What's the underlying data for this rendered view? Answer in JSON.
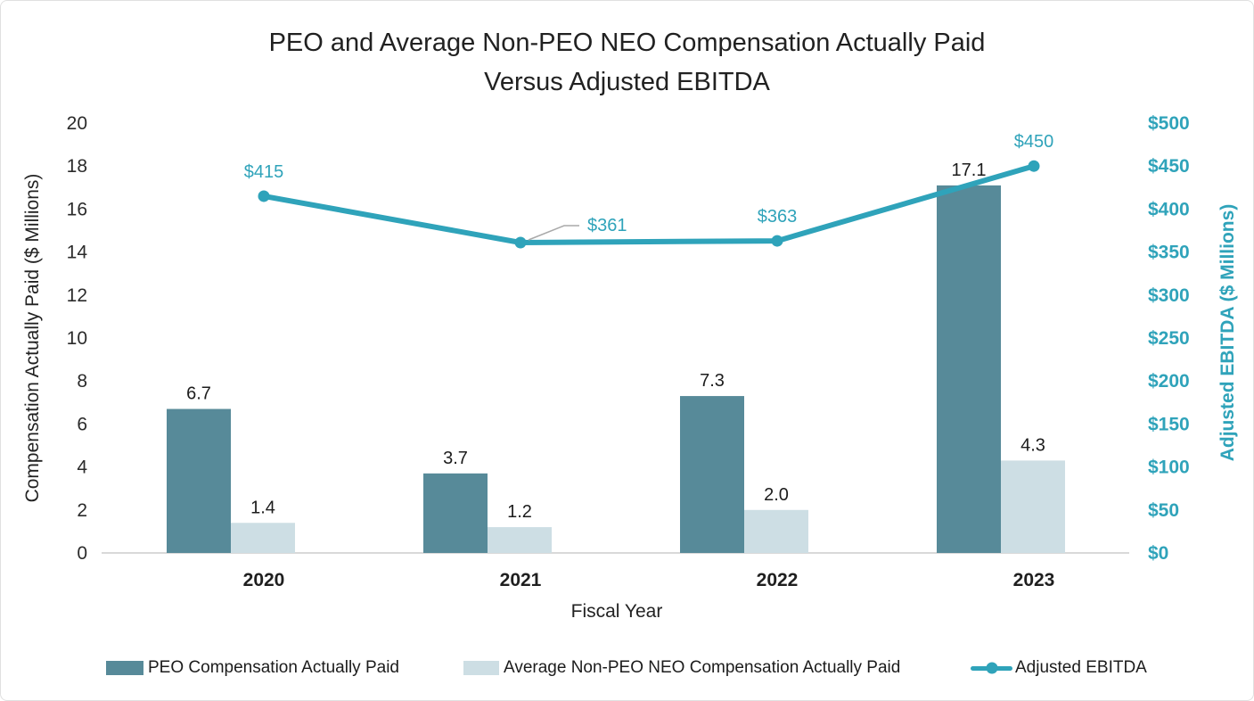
{
  "title": {
    "line1": "PEO and Average Non-PEO NEO Compensation Actually Paid",
    "line2": "Versus Adjusted EBITDA"
  },
  "axes": {
    "left_label": "Compensation Actually Paid ($ Millions)",
    "right_label": "Adjusted EBITDA ($ Millions)",
    "x_label": "Fiscal Year"
  },
  "legend": {
    "items": [
      {
        "label": "PEO Compensation Actually Paid",
        "swatch": "bar_dark"
      },
      {
        "label": "Average Non-PEO NEO Compensation Actually Paid",
        "swatch": "bar_light"
      },
      {
        "label": "Adjusted EBITDA",
        "swatch": "line"
      }
    ]
  },
  "colors": {
    "bar_dark": "#578A99",
    "bar_light": "#CDDEE4",
    "line": "#2FA3BA",
    "axis_line": "#D9D9D9",
    "leader_line": "#A9A9A9",
    "text_dark": "#1F1F1F"
  },
  "chart_data": {
    "type": "combo-bar-line",
    "title": "PEO and Average Non-PEO NEO Compensation Actually Paid Versus Adjusted EBITDA",
    "xlabel": "Fiscal Year",
    "categories": [
      "2020",
      "2021",
      "2022",
      "2023"
    ],
    "left_axis": {
      "label": "Compensation Actually Paid ($ Millions)",
      "min": 0,
      "max": 20,
      "step": 2,
      "tick_labels": [
        "0",
        "2",
        "4",
        "6",
        "8",
        "10",
        "12",
        "14",
        "16",
        "18",
        "20"
      ]
    },
    "right_axis": {
      "label": "Adjusted EBITDA ($ Millions)",
      "min": 0,
      "max": 500,
      "step": 50,
      "tick_labels": [
        "$0",
        "$50",
        "$100",
        "$150",
        "$200",
        "$250",
        "$300",
        "$350",
        "$400",
        "$450",
        "$500"
      ]
    },
    "series": [
      {
        "name": "PEO Compensation Actually Paid",
        "type": "bar",
        "axis": "left",
        "color_key": "bar_dark",
        "values": [
          6.7,
          3.7,
          7.3,
          17.1
        ],
        "value_labels": [
          "6.7",
          "3.7",
          "7.3",
          "17.1"
        ]
      },
      {
        "name": "Average Non-PEO NEO Compensation Actually Paid",
        "type": "bar",
        "axis": "left",
        "color_key": "bar_light",
        "values": [
          1.4,
          1.2,
          2.0,
          4.3
        ],
        "value_labels": [
          "1.4",
          "1.2",
          "2.0",
          "4.3"
        ]
      },
      {
        "name": "Adjusted EBITDA",
        "type": "line",
        "axis": "right",
        "color_key": "line",
        "values": [
          415,
          361,
          363,
          450
        ],
        "value_labels": [
          "$415",
          "$361",
          "$363",
          "$450"
        ]
      }
    ],
    "grid": false,
    "legend_position": "bottom"
  }
}
